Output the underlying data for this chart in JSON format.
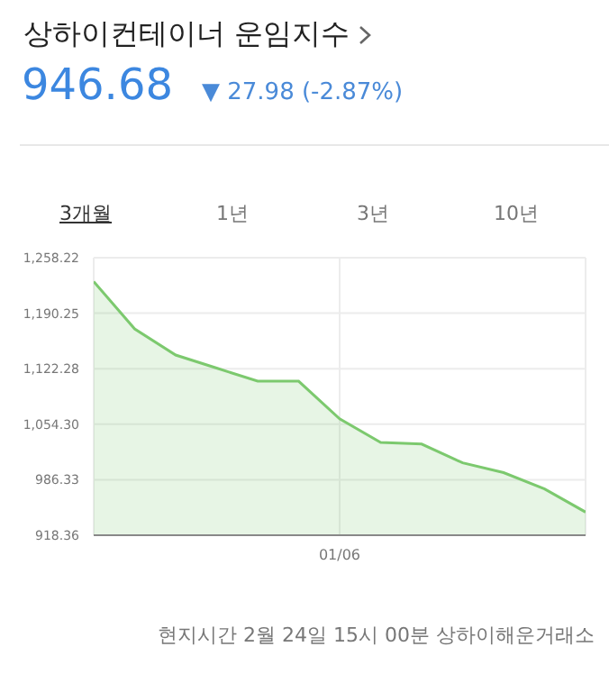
{
  "chart_data": {
    "type": "area",
    "title": "상하이컨테이너 운임지수",
    "subtitle": "946.68",
    "annotations": [
      "▼ 27.98 (-2.87%)",
      "3개월",
      "1년",
      "3년",
      "10년",
      "현지시간 2월 24일 15시 00분 상하이해운거래소"
    ],
    "categories": [
      null,
      null,
      null,
      null,
      null,
      null,
      "01/06",
      null,
      null,
      null,
      null,
      null,
      null
    ],
    "values": [
      1229,
      1171,
      1139,
      1123,
      1107,
      1107,
      1061,
      1032,
      1030,
      1007,
      995,
      975,
      946.68
    ],
    "color": "#7cc96e",
    "ylim": [
      918.36,
      1258.22
    ],
    "yticks": [
      918.36,
      986.33,
      {
        "value": 1054.3,
        "label": "1,054.30"
      },
      {
        "value": 1122.28,
        "label": "1,122.28"
      },
      {
        "value": 1190.25,
        "label": "1,190.25"
      },
      {
        "value": 1258.22,
        "label": "1,258.22"
      }
    ],
    "grid": true
  }
}
